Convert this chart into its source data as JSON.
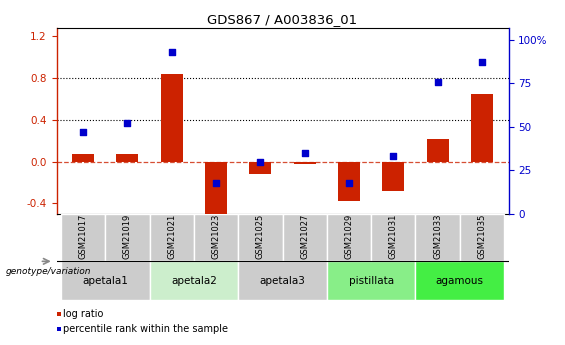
{
  "title": "GDS867 / A003836_01",
  "samples": [
    "GSM21017",
    "GSM21019",
    "GSM21021",
    "GSM21023",
    "GSM21025",
    "GSM21027",
    "GSM21029",
    "GSM21031",
    "GSM21033",
    "GSM21035"
  ],
  "log_ratio": [
    0.07,
    0.07,
    0.84,
    -0.5,
    -0.12,
    -0.02,
    -0.38,
    -0.28,
    0.22,
    0.65
  ],
  "percentile_rank": [
    47,
    52,
    93,
    18,
    30,
    35,
    18,
    33,
    76,
    87
  ],
  "ylim_left": [
    -0.5,
    1.28
  ],
  "ylim_right": [
    0,
    107
  ],
  "yticks_left": [
    -0.4,
    0.0,
    0.4,
    0.8,
    1.2
  ],
  "yticks_right": [
    0,
    25,
    50,
    75,
    100
  ],
  "hlines_dotted": [
    0.4,
    0.8
  ],
  "hline_dashed": 0.0,
  "bar_color": "#cc2200",
  "dot_color": "#0000cc",
  "groups": [
    {
      "label": "apetala1",
      "indices": [
        0,
        1
      ],
      "color": "#cccccc"
    },
    {
      "label": "apetala2",
      "indices": [
        2,
        3
      ],
      "color": "#cceecc"
    },
    {
      "label": "apetala3",
      "indices": [
        4,
        5
      ],
      "color": "#cccccc"
    },
    {
      "label": "pistillata",
      "indices": [
        6,
        7
      ],
      "color": "#88ee88"
    },
    {
      "label": "agamous",
      "indices": [
        8,
        9
      ],
      "color": "#44ee44"
    }
  ],
  "legend_items": [
    {
      "label": "log ratio",
      "color": "#cc2200"
    },
    {
      "label": "percentile rank within the sample",
      "color": "#0000cc"
    }
  ],
  "genotype_label": "genotype/variation",
  "bar_width": 0.5
}
